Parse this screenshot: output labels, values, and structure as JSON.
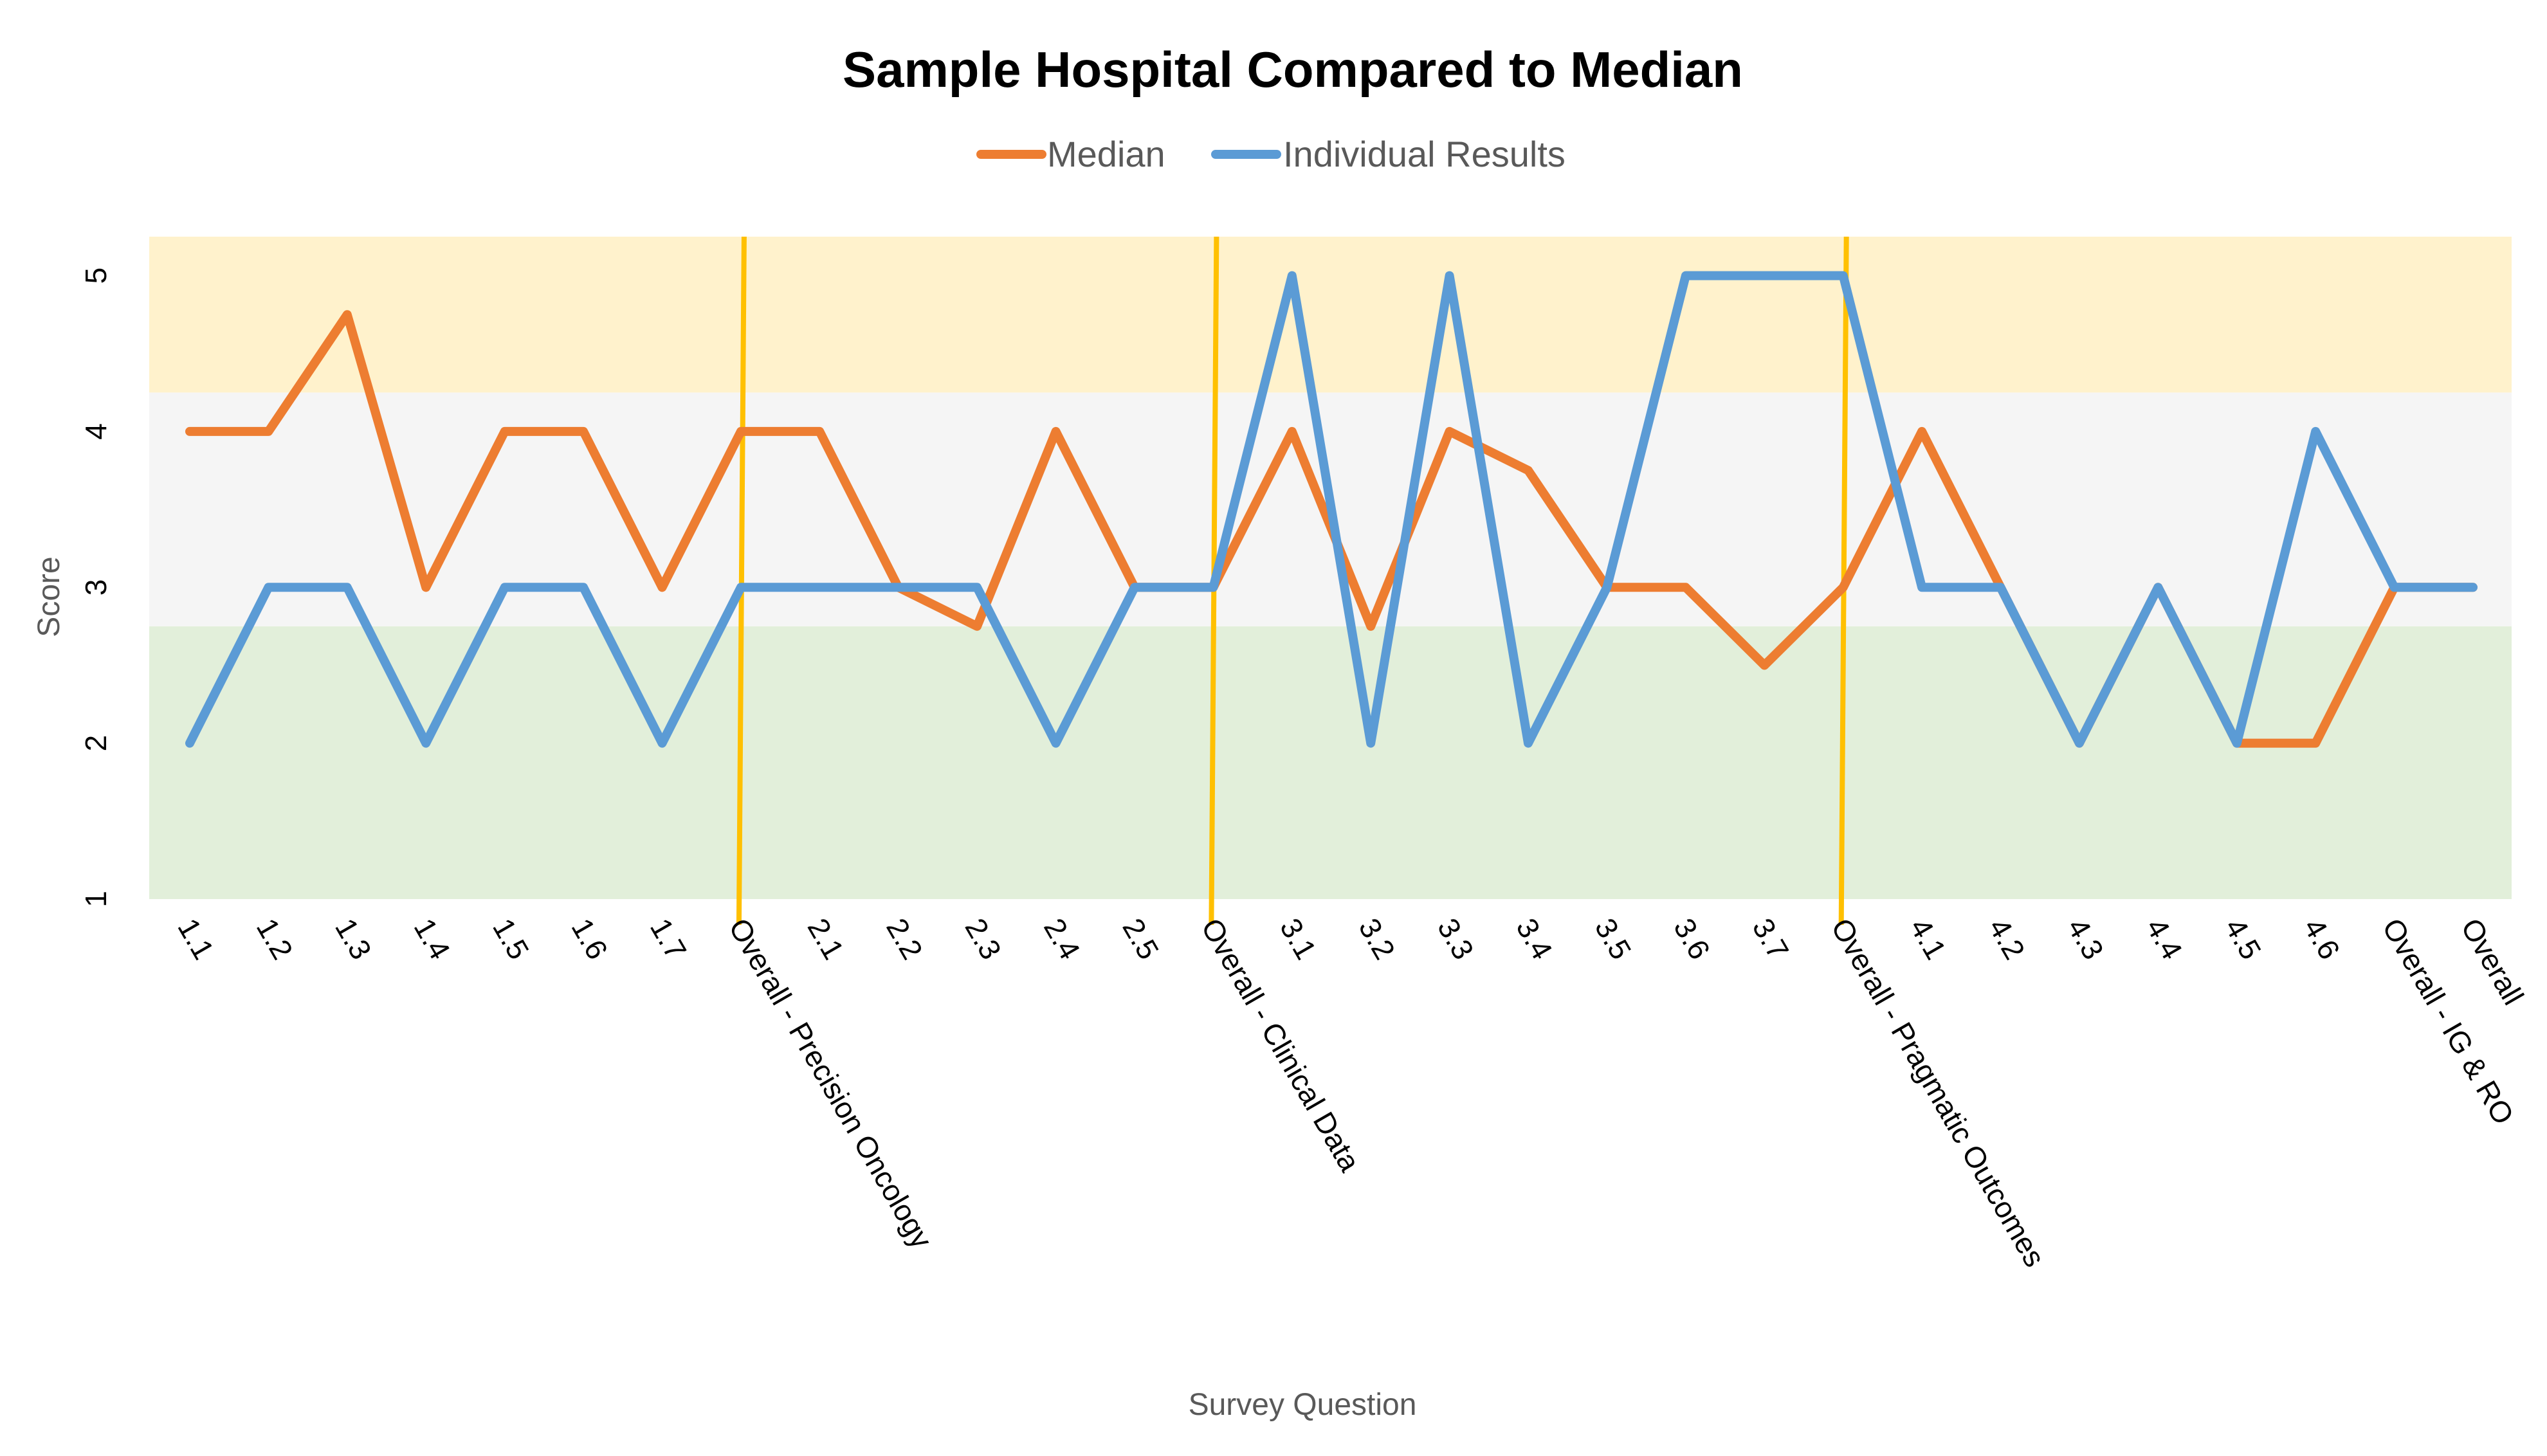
{
  "chart_data": {
    "type": "line",
    "title": "Sample Hospital Compared to Median",
    "xlabel": "Survey Question",
    "ylabel": "Score",
    "ylim": [
      1,
      5.25
    ],
    "yticks": [
      1,
      2,
      3,
      4,
      5
    ],
    "legend_position": "top-center",
    "grid": false,
    "categories": [
      "1.1",
      "1.2",
      "1.3",
      "1.4",
      "1.5",
      "1.6",
      "1.7",
      "Overall - Precision Oncology",
      "2.1",
      "2.2",
      "2.3",
      "2.4",
      "2.5",
      "Overall - Clinical Data",
      "3.1",
      "3.2",
      "3.3",
      "3.4",
      "3.5",
      "3.6",
      "3.7",
      "Overall - Pragmatic Outcomes",
      "4.1",
      "4.2",
      "4.3",
      "4.4",
      "4.5",
      "4.6",
      "Overall - IG & RO",
      "Overall"
    ],
    "series": [
      {
        "name": "Median",
        "color": "#ED7D31",
        "values": [
          4,
          4,
          4.75,
          3,
          4,
          4,
          3,
          4,
          4,
          3,
          2.75,
          4,
          3,
          3,
          4,
          2.75,
          4,
          3.75,
          3,
          3,
          2.5,
          3,
          4,
          3,
          2,
          3,
          2,
          2,
          3,
          3
        ]
      },
      {
        "name": "Individual Results",
        "color": "#5B9BD5",
        "values": [
          2,
          3,
          3,
          2,
          3,
          3,
          2,
          3,
          3,
          3,
          3,
          2,
          3,
          3,
          5,
          2,
          5,
          2,
          3,
          5,
          5,
          5,
          3,
          3,
          2,
          3,
          2,
          4,
          3,
          3
        ]
      }
    ],
    "bands": [
      {
        "from": 1,
        "to": 2.75,
        "color": "#E2EFDA"
      },
      {
        "from": 2.75,
        "to": 4.25,
        "color": "#F5F5F5"
      },
      {
        "from": 4.25,
        "to": 5.25,
        "color": "#FFF2CC"
      }
    ],
    "dividers": {
      "after_categories": [
        "Overall - Precision Oncology",
        "Overall - Clinical Data",
        "Overall - Pragmatic Outcomes"
      ],
      "color": "#FFC000"
    }
  }
}
